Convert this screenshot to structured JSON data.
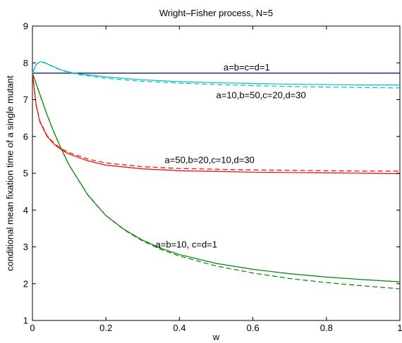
{
  "chart_data": {
    "type": "line",
    "title": "Wright–Fisher process, N=5",
    "xlabel": "w",
    "ylabel": "conditional mean fixation time of a single mutant",
    "xlim": [
      0,
      1
    ],
    "ylim": [
      1,
      9
    ],
    "xticks": [
      0,
      0.2,
      0.4,
      0.6,
      0.8,
      1
    ],
    "xtick_labels": [
      "0",
      "0.2",
      "0.4",
      "0.6",
      "0.8",
      "1"
    ],
    "yticks": [
      1,
      2,
      3,
      4,
      5,
      6,
      7,
      8,
      9
    ],
    "ytick_labels": [
      "1",
      "2",
      "3",
      "4",
      "5",
      "6",
      "7",
      "8",
      "9"
    ],
    "grid": false,
    "legend": "none",
    "series": [
      {
        "color": "#000080",
        "style": "solid",
        "points": [
          [
            0,
            7.72
          ],
          [
            1,
            7.72
          ]
        ]
      },
      {
        "color": "#00bfbf",
        "style": "solid",
        "points": [
          [
            0,
            7.72
          ],
          [
            0.01,
            7.95
          ],
          [
            0.02,
            8.03
          ],
          [
            0.03,
            8.02
          ],
          [
            0.05,
            7.93
          ],
          [
            0.08,
            7.8
          ],
          [
            0.12,
            7.71
          ],
          [
            0.2,
            7.62
          ],
          [
            0.3,
            7.54
          ],
          [
            0.4,
            7.49
          ],
          [
            0.5,
            7.46
          ],
          [
            0.6,
            7.44
          ],
          [
            0.7,
            7.42
          ],
          [
            0.8,
            7.41
          ],
          [
            0.9,
            7.4
          ],
          [
            1,
            7.4
          ]
        ]
      },
      {
        "color": "#00bfbf",
        "style": "dashed",
        "points": [
          [
            0,
            7.72
          ],
          [
            0.01,
            7.95
          ],
          [
            0.02,
            8.02
          ],
          [
            0.03,
            8.01
          ],
          [
            0.05,
            7.92
          ],
          [
            0.08,
            7.79
          ],
          [
            0.12,
            7.69
          ],
          [
            0.2,
            7.58
          ],
          [
            0.3,
            7.5
          ],
          [
            0.4,
            7.45
          ],
          [
            0.5,
            7.41
          ],
          [
            0.6,
            7.38
          ],
          [
            0.7,
            7.36
          ],
          [
            0.8,
            7.34
          ],
          [
            0.9,
            7.33
          ],
          [
            1,
            7.32
          ]
        ]
      },
      {
        "color": "#ff0000",
        "style": "solid",
        "points": [
          [
            0,
            7.72
          ],
          [
            0.01,
            6.85
          ],
          [
            0.02,
            6.4
          ],
          [
            0.04,
            6.0
          ],
          [
            0.06,
            5.78
          ],
          [
            0.08,
            5.63
          ],
          [
            0.1,
            5.52
          ],
          [
            0.15,
            5.34
          ],
          [
            0.2,
            5.22
          ],
          [
            0.3,
            5.12
          ],
          [
            0.4,
            5.07
          ],
          [
            0.5,
            5.05
          ],
          [
            0.6,
            5.03
          ],
          [
            0.7,
            5.02
          ],
          [
            0.8,
            5.01
          ],
          [
            0.9,
            5.0
          ],
          [
            1,
            4.99
          ]
        ]
      },
      {
        "color": "#ff0000",
        "style": "dashed",
        "points": [
          [
            0,
            7.72
          ],
          [
            0.01,
            6.87
          ],
          [
            0.02,
            6.42
          ],
          [
            0.04,
            6.02
          ],
          [
            0.06,
            5.8
          ],
          [
            0.08,
            5.66
          ],
          [
            0.1,
            5.56
          ],
          [
            0.15,
            5.39
          ],
          [
            0.2,
            5.28
          ],
          [
            0.3,
            5.18
          ],
          [
            0.4,
            5.13
          ],
          [
            0.5,
            5.11
          ],
          [
            0.6,
            5.09
          ],
          [
            0.7,
            5.08
          ],
          [
            0.8,
            5.07
          ],
          [
            0.9,
            5.06
          ],
          [
            1,
            5.06
          ]
        ]
      },
      {
        "color": "#008000",
        "style": "solid",
        "points": [
          [
            0,
            7.72
          ],
          [
            0.02,
            7.15
          ],
          [
            0.04,
            6.58
          ],
          [
            0.06,
            6.08
          ],
          [
            0.08,
            5.63
          ],
          [
            0.1,
            5.22
          ],
          [
            0.15,
            4.42
          ],
          [
            0.2,
            3.85
          ],
          [
            0.25,
            3.47
          ],
          [
            0.3,
            3.18
          ],
          [
            0.35,
            2.96
          ],
          [
            0.4,
            2.79
          ],
          [
            0.5,
            2.55
          ],
          [
            0.6,
            2.39
          ],
          [
            0.7,
            2.27
          ],
          [
            0.8,
            2.18
          ],
          [
            0.9,
            2.11
          ],
          [
            1,
            2.05
          ]
        ]
      },
      {
        "color": "#008000",
        "style": "dashed",
        "points": [
          [
            0,
            7.72
          ],
          [
            0.02,
            7.15
          ],
          [
            0.04,
            6.58
          ],
          [
            0.06,
            6.08
          ],
          [
            0.08,
            5.63
          ],
          [
            0.1,
            5.22
          ],
          [
            0.15,
            4.42
          ],
          [
            0.2,
            3.85
          ],
          [
            0.25,
            3.46
          ],
          [
            0.3,
            3.16
          ],
          [
            0.35,
            2.93
          ],
          [
            0.4,
            2.75
          ],
          [
            0.5,
            2.48
          ],
          [
            0.6,
            2.29
          ],
          [
            0.7,
            2.14
          ],
          [
            0.8,
            2.03
          ],
          [
            0.9,
            1.94
          ],
          [
            1,
            1.86
          ]
        ]
      }
    ],
    "annotations": [
      {
        "text": "a=b=c=d=1",
        "x": 0.52,
        "y": 7.88
      },
      {
        "text": "a=10,b=50,c=20,d=30",
        "x": 0.5,
        "y": 7.12
      },
      {
        "text": "a=50,b=20,c=10,d=30",
        "x": 0.36,
        "y": 5.36
      },
      {
        "text": "a=b=10, c=d=1",
        "x": 0.335,
        "y": 3.07
      }
    ]
  }
}
